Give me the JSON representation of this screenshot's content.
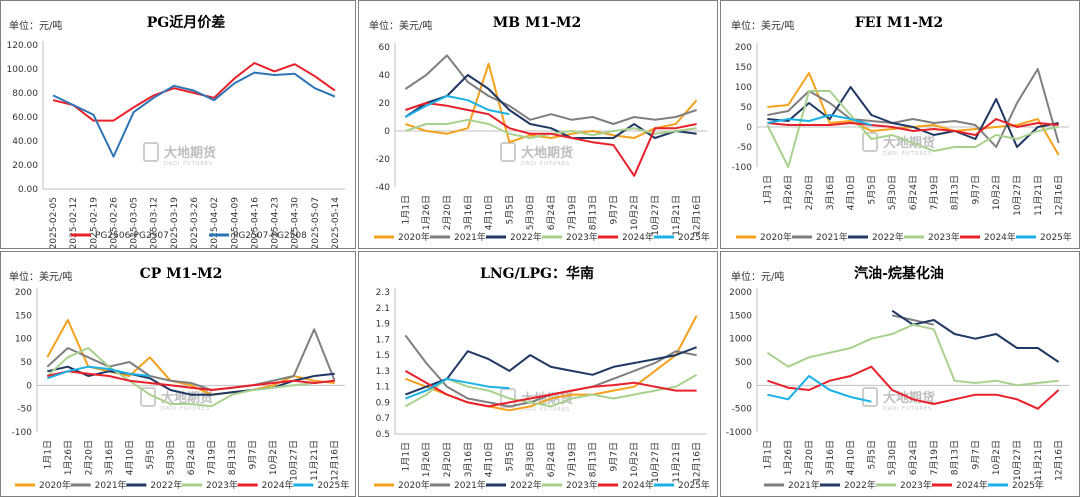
{
  "watermark": {
    "name": "大地期货",
    "sub": "DADI FUTURES"
  },
  "chart_data": [
    {
      "id": "pg",
      "type": "line",
      "title": "PG近月价差",
      "unit_label": "单位：元/吨",
      "ylim": [
        0,
        120
      ],
      "yticks": [
        "0.00",
        "20.00",
        "40.00",
        "60.00",
        "80.00",
        "100.00",
        "120.00"
      ],
      "x": [
        "2025-02-05",
        "2025-02-12",
        "2025-02-19",
        "2025-02-26",
        "2025-03-05",
        "2025-03-12",
        "2025-03-19",
        "2025-03-26",
        "2025-04-02",
        "2025-04-09",
        "2025-04-16",
        "2025-04-23",
        "2025-04-30",
        "2025-05-07",
        "2025-05-14"
      ],
      "legend_position": "bottom",
      "series": [
        {
          "name": "PG2506-PG2507",
          "color": "#e8202a",
          "values": [
            74,
            70,
            57,
            57,
            68,
            78,
            84,
            80,
            76,
            92,
            105,
            98,
            104,
            94,
            82
          ]
        },
        {
          "name": "PG2507-PG2508",
          "color": "#2e75b6",
          "values": [
            78,
            70,
            62,
            27,
            64,
            76,
            86,
            82,
            74,
            88,
            97,
            95,
            96,
            84,
            77
          ]
        }
      ]
    },
    {
      "id": "mb",
      "type": "line",
      "title": "MB M1-M2",
      "unit_label": "单位：美元/吨",
      "ylim": [
        -40,
        60
      ],
      "yticks": [
        "-40",
        "-20",
        "0",
        "20",
        "40",
        "60"
      ],
      "x": [
        "1月1日",
        "1月26日",
        "2月20日",
        "3月16日",
        "4月10日",
        "5月5日",
        "5月30日",
        "6月24日",
        "7月19日",
        "8月13日",
        "9月7日",
        "10月2日",
        "10月27日",
        "11月21日",
        "12月16日"
      ],
      "legend_position": "bottom",
      "series": [
        {
          "name": "2020年",
          "color": "#f5a11b",
          "values": [
            5,
            0,
            -2,
            2,
            48,
            -8,
            -3,
            -5,
            -2,
            0,
            -3,
            -5,
            2,
            5,
            22
          ]
        },
        {
          "name": "2021年",
          "color": "#7f7f7f",
          "values": [
            30,
            40,
            54,
            35,
            25,
            18,
            8,
            12,
            8,
            10,
            5,
            10,
            8,
            10,
            15
          ]
        },
        {
          "name": "2022年",
          "color": "#1f3864",
          "values": [
            10,
            20,
            25,
            40,
            30,
            15,
            5,
            2,
            -5,
            -5,
            -5,
            5,
            -5,
            0,
            -2
          ]
        },
        {
          "name": "2023年",
          "color": "#a9d18e",
          "values": [
            0,
            5,
            5,
            8,
            5,
            -2,
            -5,
            -2,
            0,
            -3,
            0,
            2,
            -2,
            0,
            2
          ]
        },
        {
          "name": "2024年",
          "color": "#e8202a",
          "values": [
            15,
            20,
            18,
            15,
            12,
            2,
            -2,
            -2,
            -5,
            -8,
            -10,
            -32,
            2,
            2,
            5
          ]
        },
        {
          "name": "2025年",
          "color": "#19b1e6",
          "values": [
            10,
            18,
            25,
            22,
            15,
            12,
            null,
            null,
            null,
            null,
            null,
            null,
            null,
            null,
            null
          ]
        }
      ]
    },
    {
      "id": "fei",
      "type": "line",
      "title": "FEI M1-M2",
      "unit_label": "单位：美元/吨",
      "ylim": [
        -100,
        200
      ],
      "yticks": [
        "-100",
        "-50",
        "0",
        "50",
        "100",
        "150",
        "200"
      ],
      "x": [
        "1月1日",
        "1月26日",
        "2月20日",
        "3月16日",
        "4月10日",
        "5月5日",
        "5月30日",
        "6月24日",
        "7月19日",
        "8月13日",
        "9月7日",
        "10月2日",
        "10月27日",
        "11月21日",
        "12月16日"
      ],
      "legend_position": "bottom",
      "series": [
        {
          "name": "2020年",
          "color": "#f5a11b",
          "values": [
            50,
            55,
            135,
            10,
            15,
            -10,
            -5,
            0,
            5,
            -10,
            -5,
            0,
            5,
            20,
            -70
          ]
        },
        {
          "name": "2021年",
          "color": "#7f7f7f",
          "values": [
            30,
            40,
            90,
            60,
            20,
            15,
            10,
            20,
            10,
            15,
            5,
            -50,
            60,
            145,
            -40
          ]
        },
        {
          "name": "2022年",
          "color": "#1f3864",
          "values": [
            20,
            15,
            60,
            20,
            100,
            30,
            10,
            0,
            -20,
            -10,
            -30,
            70,
            -50,
            0,
            10
          ]
        },
        {
          "name": "2023年",
          "color": "#a9d18e",
          "values": [
            5,
            -100,
            90,
            90,
            30,
            -30,
            -20,
            -40,
            -60,
            -50,
            -50,
            -20,
            -30,
            -10,
            0
          ]
        },
        {
          "name": "2024年",
          "color": "#e8202a",
          "values": [
            10,
            5,
            5,
            5,
            10,
            5,
            0,
            -10,
            -5,
            -10,
            -20,
            20,
            0,
            10,
            5
          ]
        },
        {
          "name": "2025年",
          "color": "#19b1e6",
          "values": [
            10,
            20,
            15,
            30,
            20,
            5,
            null,
            null,
            null,
            null,
            null,
            null,
            null,
            null,
            null
          ]
        }
      ]
    },
    {
      "id": "cp",
      "type": "line",
      "title": "CP M1-M2",
      "unit_label": "单位：美元/吨",
      "ylim": [
        -100,
        200
      ],
      "yticks": [
        "-100",
        "-50",
        "0",
        "50",
        "100",
        "150",
        "200"
      ],
      "x": [
        "1月1日",
        "1月26日",
        "2月20日",
        "3月16日",
        "4月10日",
        "5月5日",
        "5月30日",
        "6月24日",
        "7月19日",
        "8月13日",
        "9月7日",
        "10月2日",
        "10月27日",
        "11月21日",
        "12月16日"
      ],
      "legend_position": "bottom",
      "series": [
        {
          "name": "2020年",
          "color": "#f5a11b",
          "values": [
            60,
            140,
            40,
            30,
            20,
            60,
            10,
            0,
            -20,
            -15,
            -10,
            0,
            20,
            10,
            5
          ]
        },
        {
          "name": "2021年",
          "color": "#7f7f7f",
          "values": [
            40,
            80,
            60,
            40,
            50,
            20,
            10,
            5,
            -10,
            -5,
            0,
            10,
            20,
            120,
            10
          ]
        },
        {
          "name": "2022年",
          "color": "#1f3864",
          "values": [
            30,
            40,
            20,
            30,
            25,
            15,
            -10,
            -20,
            -20,
            -15,
            -10,
            -5,
            10,
            20,
            25
          ]
        },
        {
          "name": "2023年",
          "color": "#a9d18e",
          "values": [
            20,
            60,
            80,
            40,
            10,
            -20,
            -40,
            -40,
            -45,
            -20,
            -10,
            -5,
            0,
            5,
            10
          ]
        },
        {
          "name": "2024年",
          "color": "#e8202a",
          "values": [
            20,
            30,
            25,
            20,
            10,
            5,
            0,
            -5,
            -10,
            -5,
            0,
            5,
            10,
            5,
            10
          ]
        },
        {
          "name": "2025年",
          "color": "#19b1e6",
          "values": [
            15,
            30,
            40,
            35,
            25,
            20,
            null,
            null,
            null,
            null,
            null,
            null,
            null,
            null,
            null
          ]
        }
      ]
    },
    {
      "id": "lng",
      "type": "line",
      "title": "LNG/LPG：华南",
      "unit_label": "",
      "ylim": [
        0.5,
        2.3
      ],
      "yticks": [
        "0.5",
        "0.7",
        "0.9",
        "1.1",
        "1.3",
        "1.5",
        "1.7",
        "1.9",
        "2.1",
        "2.3"
      ],
      "x": [
        "1月1日",
        "1月26日",
        "2月20日",
        "3月16日",
        "4月10日",
        "5月5日",
        "5月30日",
        "6月24日",
        "7月19日",
        "8月13日",
        "9月7日",
        "10月2日",
        "10月27日",
        "11月21日",
        "12月16日"
      ],
      "legend_position": "bottom",
      "series": [
        {
          "name": "2020年",
          "color": "#f5a11b",
          "values": [
            1.2,
            1.1,
            1.0,
            0.9,
            0.85,
            0.8,
            0.85,
            0.95,
            1.0,
            1.0,
            1.05,
            1.1,
            1.3,
            1.5,
            2.0
          ]
        },
        {
          "name": "2021年",
          "color": "#7f7f7f",
          "values": [
            1.75,
            1.4,
            1.1,
            0.95,
            0.9,
            0.85,
            0.9,
            1.0,
            1.05,
            1.1,
            1.2,
            1.3,
            1.4,
            1.55,
            1.5
          ]
        },
        {
          "name": "2022年",
          "color": "#1f3864",
          "values": [
            1.0,
            1.1,
            1.2,
            1.55,
            1.45,
            1.3,
            1.5,
            1.35,
            1.3,
            1.25,
            1.35,
            1.4,
            1.45,
            1.5,
            1.6
          ]
        },
        {
          "name": "2023年",
          "color": "#a9d18e",
          "values": [
            0.85,
            1.0,
            1.2,
            1.1,
            1.05,
            0.95,
            0.9,
            0.85,
            0.95,
            1.0,
            0.95,
            1.0,
            1.05,
            1.1,
            1.25
          ]
        },
        {
          "name": "2024年",
          "color": "#e8202a",
          "values": [
            1.3,
            1.15,
            1.0,
            0.9,
            0.85,
            0.9,
            0.95,
            1.0,
            1.05,
            1.1,
            1.12,
            1.15,
            1.1,
            1.05,
            1.05
          ]
        },
        {
          "name": "2025年",
          "color": "#19b1e6",
          "values": [
            0.95,
            1.05,
            1.2,
            1.15,
            1.1,
            1.08,
            null,
            null,
            null,
            null,
            null,
            null,
            null,
            null,
            null
          ]
        }
      ]
    },
    {
      "id": "gasoline",
      "type": "line",
      "title": "汽油-烷基化油",
      "unit_label": "单位：元/吨",
      "ylim": [
        -1000,
        2000
      ],
      "yticks": [
        "-1000",
        "-500",
        "0",
        "500",
        "1000",
        "1500",
        "2000"
      ],
      "x": [
        "1月1日",
        "1月26日",
        "2月20日",
        "3月16日",
        "4月10日",
        "5月5日",
        "5月30日",
        "6月24日",
        "7月19日",
        "8月13日",
        "9月7日",
        "10月2日",
        "10月27日",
        "11月21日",
        "12月16日"
      ],
      "legend_position": "bottom",
      "series": [
        {
          "name": "2021年",
          "color": "#7f7f7f",
          "values": [
            null,
            null,
            null,
            null,
            null,
            null,
            1500,
            1400,
            1300,
            null,
            null,
            null,
            null,
            null,
            null
          ]
        },
        {
          "name": "2022年",
          "color": "#1f3864",
          "values": [
            null,
            null,
            null,
            null,
            null,
            null,
            1600,
            1300,
            1400,
            1100,
            1000,
            1100,
            800,
            800,
            500
          ]
        },
        {
          "name": "2023年",
          "color": "#a9d18e",
          "values": [
            700,
            400,
            600,
            700,
            800,
            1000,
            1100,
            1300,
            1200,
            100,
            50,
            100,
            0,
            50,
            100
          ]
        },
        {
          "name": "2024年",
          "color": "#e8202a",
          "values": [
            100,
            -50,
            -100,
            100,
            200,
            400,
            -100,
            -300,
            -400,
            -300,
            -200,
            -200,
            -300,
            -500,
            -100
          ]
        },
        {
          "name": "2025年",
          "color": "#19b1e6",
          "values": [
            -200,
            -300,
            200,
            -100,
            -250,
            -350,
            null,
            null,
            null,
            null,
            null,
            null,
            null,
            null,
            null
          ]
        }
      ]
    }
  ]
}
